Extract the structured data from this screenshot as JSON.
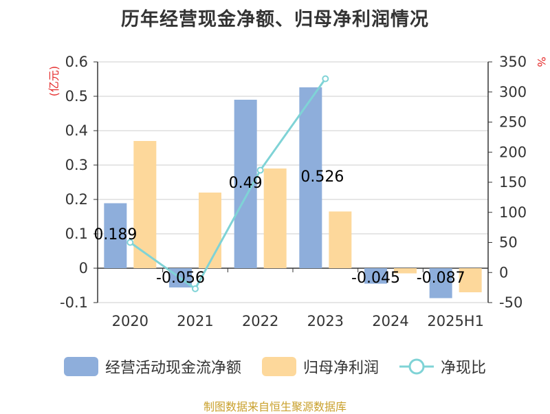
{
  "title": "历年经营现金净额、归母净利润情况",
  "left_unit": "(亿元)",
  "right_unit": "%",
  "source": "制图数据来自恒生聚源数据库",
  "colors": {
    "bar1": "#8eaedb",
    "bar2": "#fdd89b",
    "line": "#7fd3d6",
    "label": "#000000",
    "unit": "#e52a2a"
  },
  "chart_data": {
    "type": "bar",
    "categories": [
      "2020",
      "2021",
      "2022",
      "2023",
      "2024",
      "2025H1"
    ],
    "series": [
      {
        "name": "经营活动现金流净额",
        "type": "bar",
        "axis": "left",
        "values": [
          0.189,
          -0.056,
          0.49,
          0.526,
          -0.045,
          -0.087
        ],
        "labels": [
          "0.189",
          "-0.056",
          "0.49",
          "0.526",
          "-0.045",
          "-0.087"
        ]
      },
      {
        "name": "归母净利润",
        "type": "bar",
        "axis": "left",
        "values": [
          0.37,
          0.22,
          0.29,
          0.165,
          -0.015,
          -0.07
        ]
      },
      {
        "name": "净现比",
        "type": "line",
        "axis": "right",
        "values": [
          50,
          -27,
          170,
          322,
          null,
          null
        ]
      }
    ],
    "left_axis": {
      "min": -0.1,
      "max": 0.6,
      "ticks": [
        "-0.1",
        "0",
        "0.1",
        "0.2",
        "0.3",
        "0.4",
        "0.5",
        "0.6"
      ]
    },
    "right_axis": {
      "min": -50,
      "max": 350,
      "ticks": [
        "-50",
        "0",
        "50",
        "100",
        "150",
        "200",
        "250",
        "300",
        "350"
      ]
    },
    "grid": true,
    "legend_position": "bottom"
  }
}
